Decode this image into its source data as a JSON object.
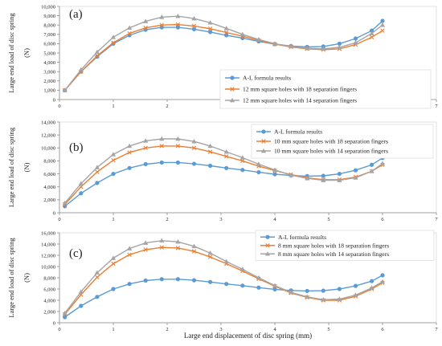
{
  "chart_data": [
    {
      "type": "line",
      "panel_label": "(a)",
      "xlim": [
        0,
        7
      ],
      "ylim": [
        0,
        10000
      ],
      "xticks": [
        0,
        1,
        2,
        3,
        4,
        5,
        6,
        7
      ],
      "yticks": [
        0,
        1000,
        2000,
        3000,
        4000,
        5000,
        6000,
        7000,
        8000,
        9000,
        10000
      ],
      "ytick_labels": [
        "0",
        "1,000",
        "2,000",
        "3,000",
        "4,000",
        "5,000",
        "6,000",
        "7,000",
        "8,000",
        "9,000",
        "10,000"
      ],
      "ylabel": "Large end load of disc spring",
      "yunit": "(N)",
      "grid": false,
      "legend_position": "bottom-right",
      "x": [
        0.1,
        0.4,
        0.7,
        1.0,
        1.3,
        1.6,
        1.9,
        2.2,
        2.5,
        2.8,
        3.1,
        3.4,
        3.7,
        4.0,
        4.3,
        4.6,
        4.9,
        5.2,
        5.5,
        5.8,
        6.0
      ],
      "series": [
        {
          "name": "A-L formula results",
          "color": "#5b9bd5",
          "marker": "circle",
          "values": [
            1000,
            3000,
            4600,
            6000,
            6900,
            7500,
            7750,
            7750,
            7550,
            7250,
            6900,
            6600,
            6250,
            5950,
            5750,
            5650,
            5700,
            6000,
            6550,
            7400,
            8450
          ]
        },
        {
          "name": "12 mm square holes with 18 separation fingers",
          "color": "#ed7d31",
          "marker": "cross",
          "values": [
            1000,
            3000,
            4700,
            6100,
            7100,
            7700,
            8000,
            8050,
            7900,
            7600,
            7200,
            6800,
            6350,
            5950,
            5650,
            5450,
            5350,
            5450,
            5900,
            6700,
            7400
          ]
        },
        {
          "name": "12 mm square holes with 14 separation fingers",
          "color": "#a5a5a5",
          "marker": "triangle",
          "values": [
            1000,
            3200,
            5100,
            6700,
            7700,
            8400,
            8850,
            8950,
            8700,
            8250,
            7650,
            7000,
            6450,
            6000,
            5700,
            5500,
            5450,
            5600,
            6100,
            7100,
            8000
          ]
        }
      ]
    },
    {
      "type": "line",
      "panel_label": "(b)",
      "xlim": [
        0,
        7
      ],
      "ylim": [
        0,
        14000
      ],
      "xticks": [
        0,
        1,
        2,
        3,
        4,
        5,
        6,
        7
      ],
      "yticks": [
        0,
        2000,
        4000,
        6000,
        8000,
        10000,
        12000,
        14000
      ],
      "ytick_labels": [
        "0",
        "2,000",
        "4,000",
        "6,000",
        "8,000",
        "10,000",
        "12,000",
        "14,000"
      ],
      "ylabel": "Large end load of disc spring",
      "yunit": "(N)",
      "grid": false,
      "legend_position": "top-right",
      "x": [
        0.1,
        0.4,
        0.7,
        1.0,
        1.3,
        1.6,
        1.9,
        2.2,
        2.5,
        2.8,
        3.1,
        3.4,
        3.7,
        4.0,
        4.3,
        4.6,
        4.9,
        5.2,
        5.5,
        5.8,
        6.0
      ],
      "series": [
        {
          "name": "A-L formula results",
          "color": "#5b9bd5",
          "marker": "circle",
          "values": [
            1000,
            3000,
            4600,
            6000,
            6900,
            7500,
            7750,
            7750,
            7550,
            7250,
            6900,
            6600,
            6250,
            5950,
            5750,
            5650,
            5700,
            6000,
            6550,
            7400,
            8450
          ]
        },
        {
          "name": "10 mm square holes with 18 separation fingers",
          "color": "#ed7d31",
          "marker": "cross",
          "values": [
            1300,
            4000,
            6300,
            8100,
            9300,
            10000,
            10300,
            10300,
            10000,
            9400,
            8700,
            8000,
            7200,
            6500,
            5900,
            5400,
            5100,
            5100,
            5500,
            6400,
            7400
          ]
        },
        {
          "name": "10 mm square holes with 14 separation fingers",
          "color": "#a5a5a5",
          "marker": "triangle",
          "values": [
            1500,
            4500,
            7000,
            9000,
            10300,
            11100,
            11400,
            11400,
            11000,
            10300,
            9400,
            8500,
            7500,
            6600,
            5800,
            5300,
            5000,
            5000,
            5400,
            6400,
            7600
          ]
        }
      ]
    },
    {
      "type": "line",
      "panel_label": "(c)",
      "xlim": [
        0,
        7
      ],
      "ylim": [
        0,
        16000
      ],
      "xticks": [
        0,
        1,
        2,
        3,
        4,
        5,
        6,
        7
      ],
      "yticks": [
        0,
        2000,
        4000,
        6000,
        8000,
        10000,
        12000,
        14000,
        16000
      ],
      "ytick_labels": [
        "0",
        "2,000",
        "4,000",
        "6,000",
        "8,000",
        "10,000",
        "12,000",
        "14,000",
        "16,000"
      ],
      "ylabel": "Large end load of disc spring",
      "yunit": "(N)",
      "xlabel": "Large end displacement of disc spring  (mm)",
      "grid": false,
      "legend_position": "top-right",
      "x": [
        0.1,
        0.4,
        0.7,
        1.0,
        1.3,
        1.6,
        1.9,
        2.2,
        2.5,
        2.8,
        3.1,
        3.4,
        3.7,
        4.0,
        4.3,
        4.6,
        4.9,
        5.2,
        5.5,
        5.8,
        6.0
      ],
      "series": [
        {
          "name": "A-L formula results",
          "color": "#5b9bd5",
          "marker": "circle",
          "values": [
            1000,
            3000,
            4600,
            6000,
            6900,
            7500,
            7750,
            7750,
            7550,
            7250,
            6900,
            6600,
            6250,
            5950,
            5750,
            5650,
            5700,
            6000,
            6550,
            7400,
            8450
          ]
        },
        {
          "name": "8 mm square holes with  18 separation fingers",
          "color": "#ed7d31",
          "marker": "cross",
          "values": [
            1500,
            5000,
            8100,
            10500,
            12100,
            13000,
            13400,
            13300,
            12700,
            11700,
            10500,
            9200,
            7800,
            6500,
            5300,
            4500,
            4000,
            4000,
            4700,
            6000,
            7100
          ]
        },
        {
          "name": "8 mm square holes with  14 separation fingers",
          "color": "#a5a5a5",
          "marker": "triangle",
          "values": [
            1700,
            5500,
            8900,
            11500,
            13200,
            14200,
            14600,
            14400,
            13600,
            12400,
            10900,
            9500,
            8000,
            6600,
            5400,
            4600,
            4100,
            4200,
            4900,
            6200,
            7300
          ]
        }
      ]
    }
  ]
}
